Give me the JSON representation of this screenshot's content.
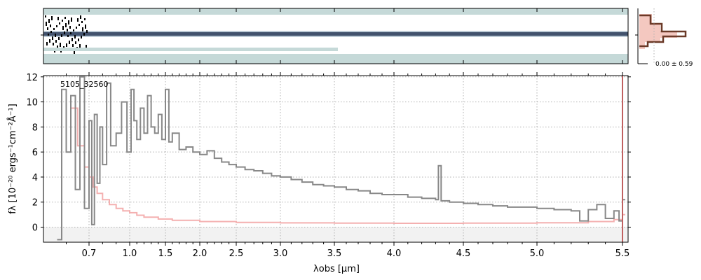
{
  "chart_data": {
    "type": "line",
    "object_id": "5105_32560",
    "xlabel": "λobs [μm]",
    "ylabel": "fλ [10⁻²⁰ ergs⁻¹cm⁻²Å⁻¹]",
    "ylim": [
      -1.2,
      12.1
    ],
    "y_ticks": [
      0,
      2,
      4,
      6,
      8,
      10,
      12
    ],
    "x_ticks": [
      0.7,
      1.0,
      1.5,
      2.0,
      2.5,
      3.0,
      3.5,
      4.0,
      4.5,
      5.0,
      5.5
    ],
    "x_scale": "stretched (compressed blue end)",
    "grid": true,
    "series": [
      {
        "role": "flux",
        "color": "#808080",
        "x": [
          0.56,
          0.58,
          0.6,
          0.62,
          0.64,
          0.66,
          0.68,
          0.7,
          0.72,
          0.74,
          0.76,
          0.78,
          0.8,
          0.83,
          0.86,
          0.9,
          0.94,
          0.98,
          1.02,
          1.06,
          1.1,
          1.15,
          1.2,
          1.25,
          1.3,
          1.35,
          1.4,
          1.45,
          1.5,
          1.55,
          1.6,
          1.7,
          1.8,
          1.9,
          2.0,
          2.1,
          2.2,
          2.3,
          2.4,
          2.5,
          2.6,
          2.7,
          2.8,
          2.9,
          3.0,
          3.1,
          3.2,
          3.3,
          3.4,
          3.5,
          3.6,
          3.7,
          3.8,
          3.9,
          4.0,
          4.1,
          4.2,
          4.3,
          4.32,
          4.34,
          4.4,
          4.5,
          4.6,
          4.7,
          4.8,
          4.9,
          5.0,
          5.1,
          5.2,
          5.25,
          5.3,
          5.35,
          5.4,
          5.45,
          5.48,
          5.5
        ],
        "values": [
          -1.0,
          11.0,
          6.0,
          10.5,
          3.0,
          12.0,
          1.5,
          8.5,
          0.2,
          9.0,
          3.5,
          8.0,
          5.0,
          11.5,
          6.5,
          7.5,
          10.0,
          6.0,
          11.0,
          8.5,
          7.0,
          9.5,
          7.5,
          10.5,
          8.0,
          7.5,
          9.0,
          7.0,
          11.0,
          6.8,
          7.5,
          6.2,
          6.4,
          6.0,
          5.8,
          6.1,
          5.5,
          5.2,
          5.0,
          4.8,
          4.6,
          4.5,
          4.3,
          4.1,
          4.0,
          3.8,
          3.6,
          3.4,
          3.3,
          3.2,
          3.0,
          2.9,
          2.7,
          2.6,
          2.6,
          2.4,
          2.3,
          2.2,
          4.9,
          2.1,
          2.0,
          1.9,
          1.8,
          1.7,
          1.6,
          1.6,
          1.5,
          1.4,
          1.3,
          0.5,
          1.4,
          1.8,
          0.7,
          1.3,
          0.5,
          2.2
        ]
      },
      {
        "role": "uncertainty",
        "color": "#f0a8a8",
        "x": [
          0.62,
          0.65,
          0.68,
          0.7,
          0.73,
          0.76,
          0.8,
          0.85,
          0.9,
          0.95,
          1.0,
          1.1,
          1.2,
          1.4,
          1.6,
          2.0,
          2.5,
          3.0,
          3.5,
          4.0,
          4.5,
          5.0,
          5.3,
          5.45,
          5.5
        ],
        "values": [
          9.5,
          6.5,
          4.8,
          4.0,
          3.2,
          2.7,
          2.2,
          1.8,
          1.5,
          1.3,
          1.15,
          0.95,
          0.8,
          0.65,
          0.55,
          0.45,
          0.38,
          0.34,
          0.32,
          0.31,
          0.32,
          0.35,
          0.45,
          0.6,
          1.0
        ]
      }
    ]
  },
  "histogram": {
    "label": "0.00 ± 0.59"
  },
  "colors": {
    "image_background": "#c5d9d8",
    "trace_dark": "#1a2a4a",
    "hist_fill": "#f4c8c0",
    "hist_line": "#6b3a28",
    "vline": "#c06060"
  }
}
